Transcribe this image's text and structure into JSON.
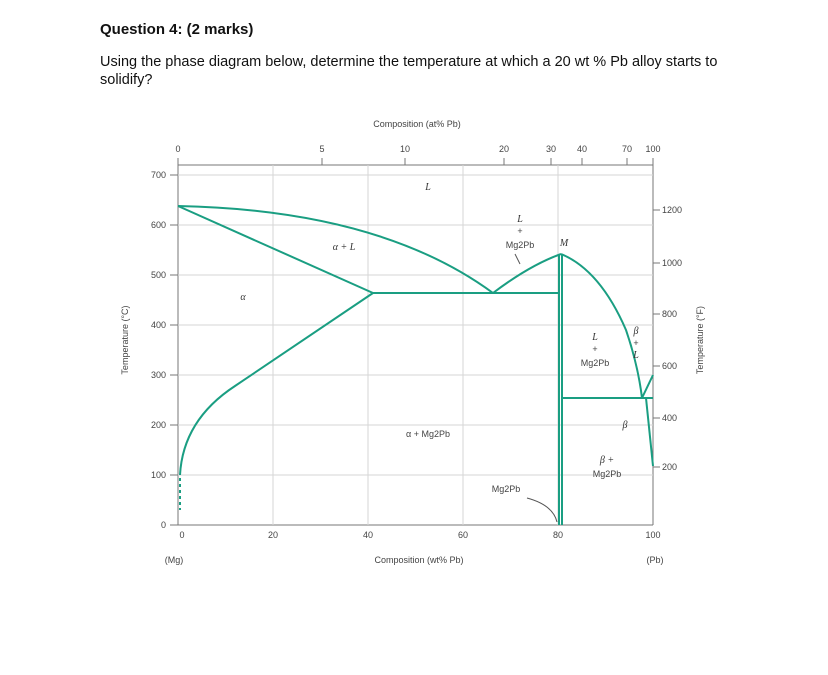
{
  "question": {
    "title": "Question 4: (2 marks)",
    "body": "Using the phase diagram below, determine the temperature at which a 20 wt % Pb alloy starts to solidify?"
  },
  "diagram": {
    "top_axis_title": "Composition (at% Pb)",
    "bottom_axis_title": "Composition (wt% Pb)",
    "left_axis_title": "Temperature (°C)",
    "right_axis_title": "Temperature (°F)",
    "left_end_label": "(Mg)",
    "right_end_label": "(Pb)",
    "line_color": "#1a9e82",
    "bottom_ticks": [
      "0",
      "20",
      "40",
      "60",
      "80",
      "100"
    ],
    "left_ticks": [
      "0",
      "100",
      "200",
      "300",
      "400",
      "500",
      "600",
      "700"
    ],
    "right_ticks": [
      "200",
      "400",
      "600",
      "800",
      "1000",
      "1200"
    ],
    "top_ticks": [
      "0",
      "5",
      "10",
      "20",
      "30",
      "40",
      "70",
      "100"
    ],
    "regions": {
      "liquid": "L",
      "alpha": "α",
      "alpha_plus_liquid": "α + L",
      "alpha_plus_mg2pb": "α + Mg2Pb",
      "liquid_plus_mg2pb_left_1": "L",
      "liquid_plus_mg2pb_left_2": "+",
      "liquid_plus_mg2pb_left_3": "Mg2Pb",
      "liquid_plus_mg2pb_right_1": "L",
      "liquid_plus_mg2pb_right_2": "+",
      "liquid_plus_mg2pb_right_3": "Mg2Pb",
      "beta_plus_liquid_1": "β",
      "beta_plus_liquid_2": "+",
      "beta_plus_liquid_3": "L",
      "beta_plus_mg2pb_1": "β +",
      "beta_plus_mg2pb_2": "Mg2Pb",
      "beta": "β",
      "mg2pb_compound": "Mg2Pb",
      "congruent_point": "M"
    }
  }
}
